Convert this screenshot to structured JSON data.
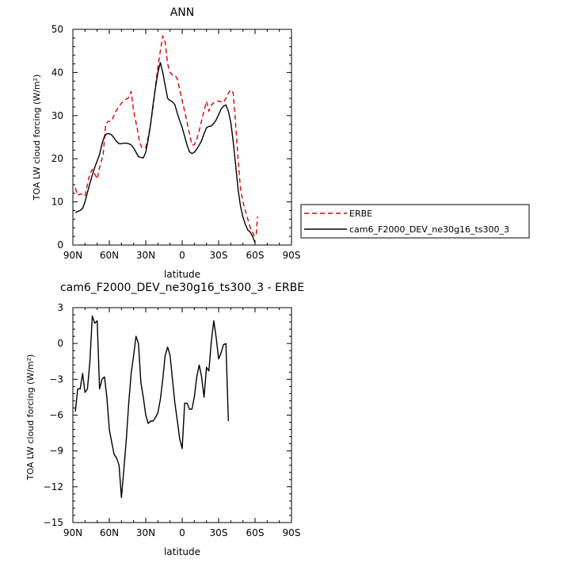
{
  "chart_data": [
    {
      "type": "line",
      "title": "ANN",
      "xlabel": "latitude",
      "ylabel": "TOA LW cloud forcing (W/m²)",
      "x_ticks": [
        "90N",
        "60N",
        "30N",
        "0",
        "30S",
        "60S",
        "90S"
      ],
      "y_ticks": [
        "0",
        "10",
        "20",
        "30",
        "40",
        "50"
      ],
      "xlim": [
        -90,
        90
      ],
      "ylim": [
        0,
        50
      ],
      "grid": false,
      "legend_position": "right",
      "series": [
        {
          "name": "ERBE",
          "color": "#dd0000",
          "dash": "dashed",
          "points": [
            [
              -88,
              13.2
            ],
            [
              -86,
              11.5
            ],
            [
              -84,
              11.8
            ],
            [
              -82,
              11.8
            ],
            [
              -80,
              11.4
            ],
            [
              -78,
              14
            ],
            [
              -76,
              16.5
            ],
            [
              -74,
              17.5
            ],
            [
              -72,
              16.5
            ],
            [
              -70,
              15.3
            ],
            [
              -68,
              18
            ],
            [
              -65,
              21
            ],
            [
              -63,
              28
            ],
            [
              -61,
              28.7
            ],
            [
              -59,
              28.6
            ],
            [
              -57,
              29.5
            ],
            [
              -55,
              30.8
            ],
            [
              -52,
              32.2
            ],
            [
              -49,
              33.2
            ],
            [
              -46,
              33.8
            ],
            [
              -44,
              34.2
            ],
            [
              -42,
              35.6
            ],
            [
              -40,
              31
            ],
            [
              -37,
              27
            ],
            [
              -35,
              23.7
            ],
            [
              -33,
              22.5
            ],
            [
              -30,
              22.6
            ],
            [
              -28,
              25
            ],
            [
              -26,
              28
            ],
            [
              -24,
              32
            ],
            [
              -22,
              37
            ],
            [
              -20,
              41.2
            ],
            [
              -18,
              45
            ],
            [
              -16,
              48.5
            ],
            [
              -14,
              47
            ],
            [
              -12,
              42
            ],
            [
              -10,
              40
            ],
            [
              -8,
              39.4
            ],
            [
              -6,
              39.4
            ],
            [
              -4,
              38.5
            ],
            [
              -2,
              36
            ],
            [
              0,
              33.5
            ],
            [
              2,
              31
            ],
            [
              4,
              28.5
            ],
            [
              6,
              25.8
            ],
            [
              8,
              23.2
            ],
            [
              10,
              23.2
            ],
            [
              12,
              24.5
            ],
            [
              14,
              26.5
            ],
            [
              16,
              28.8
            ],
            [
              18,
              31.2
            ],
            [
              20,
              33.3
            ],
            [
              22,
              31
            ],
            [
              24,
              32.4
            ],
            [
              26,
              33
            ],
            [
              28,
              33.2
            ],
            [
              30,
              33.4
            ],
            [
              32,
              33.2
            ],
            [
              34,
              33
            ],
            [
              36,
              34
            ],
            [
              38,
              35.2
            ],
            [
              40,
              36
            ],
            [
              42,
              35.3
            ],
            [
              44,
              28
            ],
            [
              46,
              20
            ],
            [
              48,
              13
            ],
            [
              50,
              10
            ],
            [
              52,
              8
            ],
            [
              54,
              6
            ],
            [
              56,
              4
            ],
            [
              58,
              3
            ],
            [
              59.5,
              2
            ],
            [
              61,
              2.5
            ],
            [
              62,
              6.6
            ]
          ]
        },
        {
          "name": "cam6_F2000_DEV_ne30g16_ts300_3",
          "color": "#000000",
          "dash": "solid",
          "points": [
            [
              -88,
              7.5
            ],
            [
              -86,
              7.8
            ],
            [
              -84,
              8
            ],
            [
              -82,
              8.5
            ],
            [
              -80,
              10
            ],
            [
              -78,
              12.2
            ],
            [
              -76,
              14.3
            ],
            [
              -74,
              16.2
            ],
            [
              -72,
              18
            ],
            [
              -70,
              19.5
            ],
            [
              -68,
              21
            ],
            [
              -66,
              23.5
            ],
            [
              -64,
              25.2
            ],
            [
              -62,
              25.8
            ],
            [
              -60,
              25.8
            ],
            [
              -58,
              25.5
            ],
            [
              -56,
              24.8
            ],
            [
              -54,
              24
            ],
            [
              -52,
              23.5
            ],
            [
              -50,
              23.5
            ],
            [
              -48,
              23.6
            ],
            [
              -46,
              23.6
            ],
            [
              -44,
              23.5
            ],
            [
              -42,
              23.2
            ],
            [
              -40,
              22.5
            ],
            [
              -38,
              21.5
            ],
            [
              -36,
              20.5
            ],
            [
              -34,
              20.3
            ],
            [
              -32,
              20.2
            ],
            [
              -30,
              21.5
            ],
            [
              -28,
              24.5
            ],
            [
              -26,
              28
            ],
            [
              -24,
              32.5
            ],
            [
              -22,
              36.5
            ],
            [
              -20,
              40
            ],
            [
              -18,
              42.3
            ],
            [
              -16,
              40
            ],
            [
              -14,
              37
            ],
            [
              -12,
              34
            ],
            [
              -10,
              33.5
            ],
            [
              -8,
              33.2
            ],
            [
              -6,
              32.5
            ],
            [
              -4,
              30.5
            ],
            [
              -2,
              28.8
            ],
            [
              0,
              27.2
            ],
            [
              2,
              25.2
            ],
            [
              4,
              23.2
            ],
            [
              6,
              21.6
            ],
            [
              8,
              21.2
            ],
            [
              10,
              21.5
            ],
            [
              12,
              22.2
            ],
            [
              14,
              23.2
            ],
            [
              16,
              24.2
            ],
            [
              18,
              25.8
            ],
            [
              20,
              27.2
            ],
            [
              22,
              27.5
            ],
            [
              24,
              27.6
            ],
            [
              26,
              28.2
            ],
            [
              28,
              29
            ],
            [
              30,
              30.2
            ],
            [
              32,
              31.5
            ],
            [
              34,
              32.2
            ],
            [
              36,
              32.5
            ],
            [
              38,
              31
            ],
            [
              40,
              28.5
            ],
            [
              42,
              24
            ],
            [
              44,
              18.5
            ],
            [
              46,
              13
            ],
            [
              48,
              9
            ],
            [
              50,
              6.5
            ],
            [
              52,
              4.8
            ],
            [
              54,
              3.5
            ],
            [
              56,
              3
            ],
            [
              58,
              2
            ],
            [
              60,
              0.5
            ]
          ]
        }
      ]
    },
    {
      "type": "line",
      "title": "cam6_F2000_DEV_ne30g16_ts300_3 - ERBE",
      "xlabel": "latitude",
      "ylabel": "TOA LW cloud forcing (W/m²)",
      "x_ticks": [
        "90N",
        "60N",
        "30N",
        "0",
        "30S",
        "60S",
        "90S"
      ],
      "y_ticks": [
        "3",
        "0",
        "-3",
        "-6",
        "-9",
        "-12",
        "-15"
      ],
      "xlim": [
        -90,
        90
      ],
      "ylim": [
        -15,
        3
      ],
      "grid": false,
      "series": [
        {
          "color": "#000000",
          "dash": "solid",
          "points": [
            [
              -88,
              -5.7
            ],
            [
              -86,
              -3.8
            ],
            [
              -84,
              -3.8
            ],
            [
              -82,
              -2.5
            ],
            [
              -80,
              -4.1
            ],
            [
              -78,
              -3.8
            ],
            [
              -76,
              -1.5
            ],
            [
              -74,
              2.3
            ],
            [
              -72,
              1.7
            ],
            [
              -70,
              1.9
            ],
            [
              -68,
              -3.8
            ],
            [
              -66,
              -3.0
            ],
            [
              -64,
              -2.8
            ],
            [
              -62,
              -4.5
            ],
            [
              -60,
              -7.2
            ],
            [
              -58,
              -8.3
            ],
            [
              -56,
              -9.3
            ],
            [
              -54,
              -9.6
            ],
            [
              -52,
              -10.2
            ],
            [
              -50,
              -12.9
            ],
            [
              -48,
              -10.5
            ],
            [
              -46,
              -8
            ],
            [
              -44,
              -5
            ],
            [
              -42,
              -2.5
            ],
            [
              -40,
              -1
            ],
            [
              -38,
              0.6
            ],
            [
              -36,
              0
            ],
            [
              -34,
              -3.3
            ],
            [
              -32,
              -4.5
            ],
            [
              -30,
              -6
            ],
            [
              -28,
              -6.7
            ],
            [
              -26,
              -6.5
            ],
            [
              -24,
              -6.5
            ],
            [
              -22,
              -6.2
            ],
            [
              -20,
              -5.8
            ],
            [
              -18,
              -4.7
            ],
            [
              -16,
              -3
            ],
            [
              -14,
              -1
            ],
            [
              -12,
              -0.3
            ],
            [
              -10,
              -1
            ],
            [
              -8,
              -3
            ],
            [
              -6,
              -5
            ],
            [
              -4,
              -6.5
            ],
            [
              -2,
              -8
            ],
            [
              0,
              -8.8
            ],
            [
              2,
              -5
            ],
            [
              4,
              -5
            ],
            [
              6,
              -5.5
            ],
            [
              8,
              -5.5
            ],
            [
              10,
              -4.5
            ],
            [
              12,
              -2.8
            ],
            [
              14,
              -1.8
            ],
            [
              16,
              -2.8
            ],
            [
              18,
              -4.5
            ],
            [
              20,
              -2
            ],
            [
              22,
              -2.3
            ],
            [
              24,
              0.2
            ],
            [
              26,
              1.9
            ],
            [
              28,
              0.5
            ],
            [
              30,
              -1.3
            ],
            [
              32,
              -0.8
            ],
            [
              34,
              -0.1
            ],
            [
              36,
              0
            ],
            [
              38,
              -6.5
            ]
          ]
        }
      ]
    }
  ]
}
